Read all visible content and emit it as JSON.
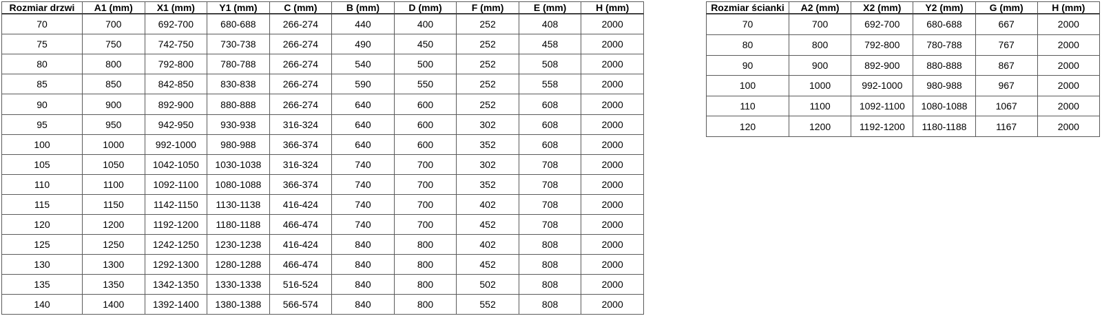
{
  "page": {
    "background_color": "#ffffff",
    "border_color": "#595959",
    "header_border_color": "#404040",
    "text_color": "#000000"
  },
  "tables": {
    "doors": {
      "title": "Rozmiar drzwi",
      "columns": [
        "Rozmiar drzwi",
        "A1 (mm)",
        "X1 (mm)",
        "Y1 (mm)",
        "C (mm)",
        "B (mm)",
        "D (mm)",
        "F (mm)",
        "E (mm)",
        "H (mm)"
      ],
      "rows": [
        [
          "70",
          "700",
          "692-700",
          "680-688",
          "266-274",
          "440",
          "400",
          "252",
          "408",
          "2000"
        ],
        [
          "75",
          "750",
          "742-750",
          "730-738",
          "266-274",
          "490",
          "450",
          "252",
          "458",
          "2000"
        ],
        [
          "80",
          "800",
          "792-800",
          "780-788",
          "266-274",
          "540",
          "500",
          "252",
          "508",
          "2000"
        ],
        [
          "85",
          "850",
          "842-850",
          "830-838",
          "266-274",
          "590",
          "550",
          "252",
          "558",
          "2000"
        ],
        [
          "90",
          "900",
          "892-900",
          "880-888",
          "266-274",
          "640",
          "600",
          "252",
          "608",
          "2000"
        ],
        [
          "95",
          "950",
          "942-950",
          "930-938",
          "316-324",
          "640",
          "600",
          "302",
          "608",
          "2000"
        ],
        [
          "100",
          "1000",
          "992-1000",
          "980-988",
          "366-374",
          "640",
          "600",
          "352",
          "608",
          "2000"
        ],
        [
          "105",
          "1050",
          "1042-1050",
          "1030-1038",
          "316-324",
          "740",
          "700",
          "302",
          "708",
          "2000"
        ],
        [
          "110",
          "1100",
          "1092-1100",
          "1080-1088",
          "366-374",
          "740",
          "700",
          "352",
          "708",
          "2000"
        ],
        [
          "115",
          "1150",
          "1142-1150",
          "1130-1138",
          "416-424",
          "740",
          "700",
          "402",
          "708",
          "2000"
        ],
        [
          "120",
          "1200",
          "1192-1200",
          "1180-1188",
          "466-474",
          "740",
          "700",
          "452",
          "708",
          "2000"
        ],
        [
          "125",
          "1250",
          "1242-1250",
          "1230-1238",
          "416-424",
          "840",
          "800",
          "402",
          "808",
          "2000"
        ],
        [
          "130",
          "1300",
          "1292-1300",
          "1280-1288",
          "466-474",
          "840",
          "800",
          "452",
          "808",
          "2000"
        ],
        [
          "135",
          "1350",
          "1342-1350",
          "1330-1338",
          "516-524",
          "840",
          "800",
          "502",
          "808",
          "2000"
        ],
        [
          "140",
          "1400",
          "1392-1400",
          "1380-1388",
          "566-574",
          "840",
          "800",
          "552",
          "808",
          "2000"
        ]
      ]
    },
    "walls": {
      "title": "Rozmiar ścianki",
      "columns": [
        "Rozmiar ścianki",
        "A2 (mm)",
        "X2 (mm)",
        "Y2 (mm)",
        "G (mm)",
        "H (mm)"
      ],
      "rows": [
        [
          "70",
          "700",
          "692-700",
          "680-688",
          "667",
          "2000"
        ],
        [
          "80",
          "800",
          "792-800",
          "780-788",
          "767",
          "2000"
        ],
        [
          "90",
          "900",
          "892-900",
          "880-888",
          "867",
          "2000"
        ],
        [
          "100",
          "1000",
          "992-1000",
          "980-988",
          "967",
          "2000"
        ],
        [
          "110",
          "1100",
          "1092-1100",
          "1080-1088",
          "1067",
          "2000"
        ],
        [
          "120",
          "1200",
          "1192-1200",
          "1180-1188",
          "1167",
          "2000"
        ]
      ]
    }
  }
}
